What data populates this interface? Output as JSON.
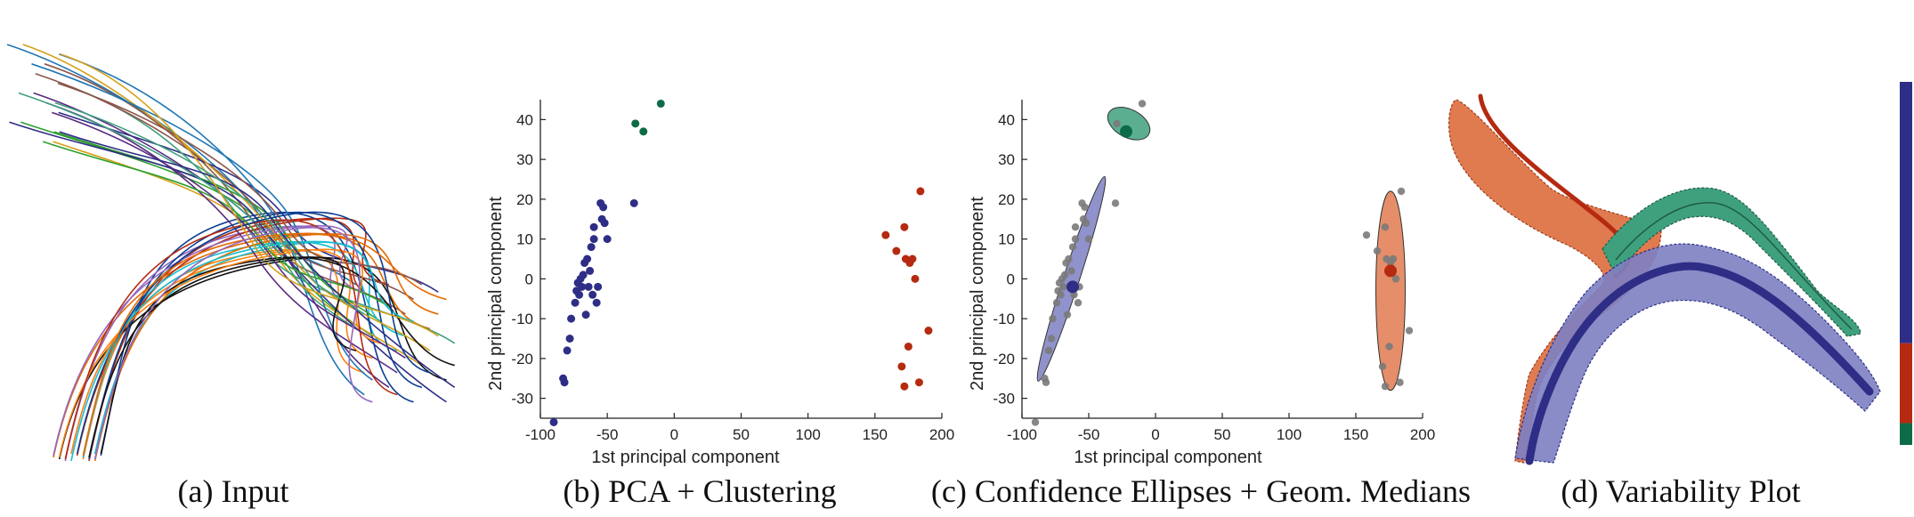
{
  "captions": {
    "a": "(a) Input",
    "b": "(b) PCA + Clustering",
    "c": "(c) Confidence Ellipses + Geom. Medians",
    "d": "(d) Variability Plot"
  },
  "colors": {
    "cluster_blue": "#2e2e87",
    "cluster_red": "#b52a10",
    "cluster_green": "#0e6b47",
    "ellipse_blue": "#7d7fc2",
    "ellipse_red": "#e07a4f",
    "ellipse_green": "#3fa07e",
    "gray_point": "#7a7a7a",
    "bar_blue": "#2e2e87",
    "bar_red": "#b52a10",
    "bar_green": "#0e6b47"
  },
  "chart_data": [
    {
      "type": "scatter",
      "xlabel": "1st principal component",
      "ylabel": "2nd principal component",
      "xlim": [
        -100,
        200
      ],
      "ylim": [
        -35,
        45
      ],
      "xticks": [
        -100,
        -50,
        0,
        50,
        100,
        150,
        200
      ],
      "yticks": [
        -30,
        -20,
        -10,
        0,
        10,
        20,
        30,
        40
      ],
      "grid": false,
      "series": [
        {
          "color": "#2e2e87",
          "points": [
            [
              -90,
              -36
            ],
            [
              -83,
              -25
            ],
            [
              -82,
              -26
            ],
            [
              -80,
              -18
            ],
            [
              -78,
              -15
            ],
            [
              -77,
              -10
            ],
            [
              -74,
              -6
            ],
            [
              -73,
              -3
            ],
            [
              -72,
              -1
            ],
            [
              -71,
              -4
            ],
            [
              -70,
              0
            ],
            [
              -69,
              -2
            ],
            [
              -68,
              1
            ],
            [
              -67,
              4
            ],
            [
              -66,
              -9
            ],
            [
              -65,
              5
            ],
            [
              -64,
              -2
            ],
            [
              -63,
              2
            ],
            [
              -62,
              8
            ],
            [
              -61,
              -4
            ],
            [
              -60,
              10
            ],
            [
              -60,
              13
            ],
            [
              -58,
              -6
            ],
            [
              -57,
              -2
            ],
            [
              -55,
              19
            ],
            [
              -54,
              15
            ],
            [
              -53,
              18
            ],
            [
              -52,
              14
            ],
            [
              -50,
              10
            ],
            [
              -30,
              19
            ]
          ]
        },
        {
          "color": "#b52a10",
          "points": [
            [
              158,
              11
            ],
            [
              166,
              7
            ],
            [
              170,
              -22
            ],
            [
              172,
              -27
            ],
            [
              172,
              13
            ],
            [
              173,
              5
            ],
            [
              175,
              -17
            ],
            [
              176,
              4
            ],
            [
              178,
              5
            ],
            [
              180,
              0
            ],
            [
              183,
              -26
            ],
            [
              184,
              22
            ],
            [
              190,
              -13
            ]
          ]
        },
        {
          "color": "#0e6b47",
          "points": [
            [
              -29,
              39
            ],
            [
              -23,
              37
            ],
            [
              -10,
              44
            ]
          ]
        }
      ]
    },
    {
      "type": "scatter",
      "xlabel": "1st principal component",
      "ylabel": "2nd principal component",
      "xlim": [
        -100,
        200
      ],
      "ylim": [
        -35,
        45
      ],
      "xticks": [
        -100,
        -50,
        0,
        50,
        100,
        150,
        200
      ],
      "yticks": [
        -30,
        -20,
        -10,
        0,
        10,
        20,
        30,
        40
      ],
      "grid": false,
      "points_color": "#7a7a7a",
      "points": [
        [
          -90,
          -36
        ],
        [
          -83,
          -25
        ],
        [
          -82,
          -26
        ],
        [
          -80,
          -18
        ],
        [
          -78,
          -15
        ],
        [
          -77,
          -10
        ],
        [
          -74,
          -6
        ],
        [
          -73,
          -3
        ],
        [
          -72,
          -1
        ],
        [
          -71,
          -4
        ],
        [
          -70,
          0
        ],
        [
          -69,
          -2
        ],
        [
          -68,
          1
        ],
        [
          -67,
          4
        ],
        [
          -66,
          -9
        ],
        [
          -65,
          5
        ],
        [
          -64,
          -2
        ],
        [
          -63,
          2
        ],
        [
          -62,
          8
        ],
        [
          -61,
          -4
        ],
        [
          -60,
          10
        ],
        [
          -60,
          13
        ],
        [
          -58,
          -6
        ],
        [
          -57,
          -2
        ],
        [
          -55,
          19
        ],
        [
          -54,
          15
        ],
        [
          -53,
          18
        ],
        [
          -52,
          14
        ],
        [
          -50,
          10
        ],
        [
          -30,
          19
        ],
        [
          158,
          11
        ],
        [
          166,
          7
        ],
        [
          170,
          -22
        ],
        [
          172,
          -27
        ],
        [
          172,
          13
        ],
        [
          173,
          5
        ],
        [
          175,
          -17
        ],
        [
          176,
          4
        ],
        [
          178,
          5
        ],
        [
          180,
          0
        ],
        [
          183,
          -26
        ],
        [
          184,
          22
        ],
        [
          190,
          -13
        ],
        [
          -29,
          39
        ],
        [
          -23,
          37
        ],
        [
          -10,
          44
        ]
      ],
      "ellipses": [
        {
          "color": "#7d7fc2",
          "center": [
            -63,
            0
          ],
          "rx": 6,
          "ry": 27,
          "angle_deg": 18
        },
        {
          "color": "#e07a4f",
          "center": [
            176,
            -3
          ],
          "rx": 11,
          "ry": 25,
          "angle_deg": 0
        },
        {
          "color": "#3fa07e",
          "center": [
            -20,
            39
          ],
          "rx": 17,
          "ry": 3.5,
          "angle_deg": 28
        }
      ],
      "medians": [
        {
          "color": "#2e2e87",
          "point": [
            -62,
            -2
          ]
        },
        {
          "color": "#b52a10",
          "point": [
            176,
            2
          ]
        },
        {
          "color": "#0e6b47",
          "point": [
            -22,
            37
          ]
        }
      ]
    }
  ],
  "variability_bar": {
    "segments": [
      {
        "color": "#2e2e87",
        "fraction": 0.72
      },
      {
        "color": "#b52a10",
        "fraction": 0.22
      },
      {
        "color": "#0e6b47",
        "fraction": 0.06
      }
    ]
  }
}
